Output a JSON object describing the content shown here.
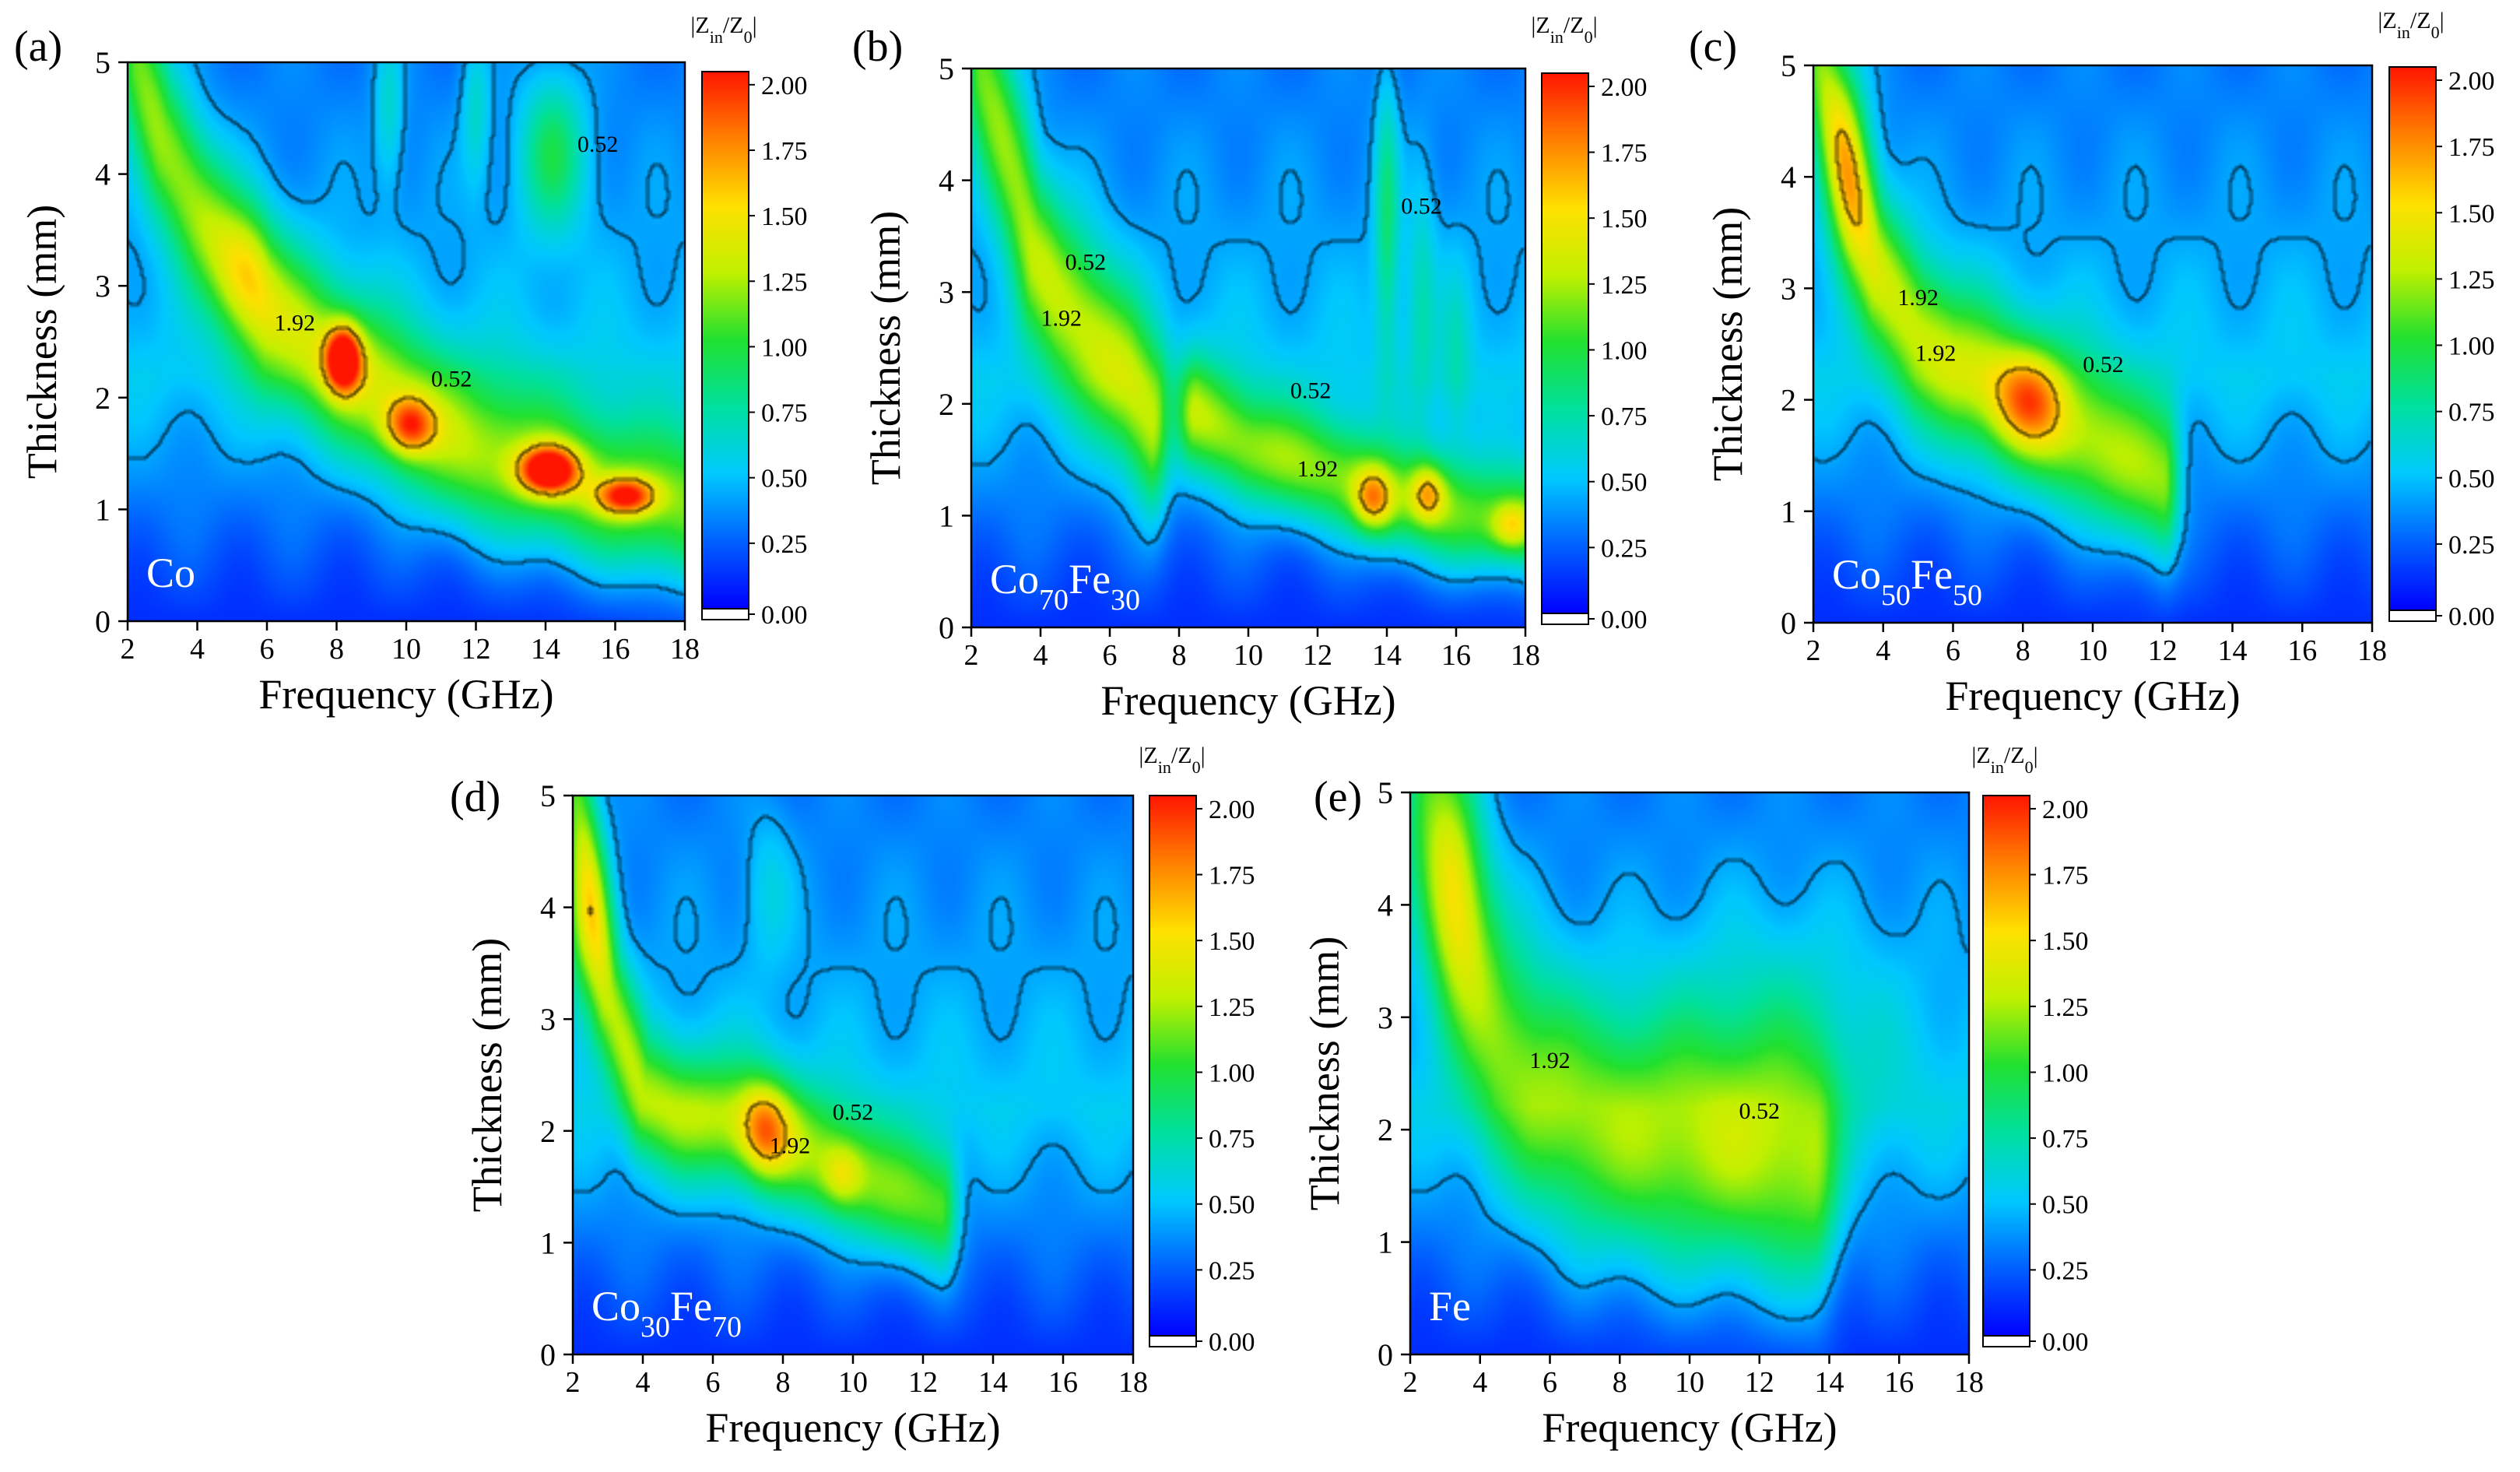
{
  "colors": {
    "contour": "#000000",
    "sample_label": "#ffffff"
  },
  "colorbar": {
    "title_prefix": "|Z",
    "title_sub1": "in",
    "title_mid": "/Z",
    "title_sub2": "0",
    "title_suffix": "|",
    "range": [
      0,
      2.05
    ],
    "ticks": [
      "2.00",
      "1.75",
      "1.50",
      "1.25",
      "1.00",
      "0.75",
      "0.50",
      "0.25",
      "0.00"
    ],
    "colormap": [
      "#0000ff",
      "#0060ff",
      "#00c8ff",
      "#00e0a0",
      "#20e030",
      "#c0f000",
      "#ffe000",
      "#ff8000",
      "#ff1500"
    ]
  },
  "axes": {
    "xlabel": "Frequency (GHz)",
    "ylabel": "Thickness (mm)",
    "xlim": [
      2,
      18
    ],
    "ylim": [
      0,
      5
    ],
    "xticks": [
      "2",
      "4",
      "6",
      "8",
      "10",
      "12",
      "14",
      "16",
      "18"
    ],
    "yticks": [
      "0",
      "1",
      "2",
      "3",
      "4",
      "5"
    ]
  },
  "chart_data": [
    {
      "type": "heatmap",
      "panel": "(a)",
      "sample": "Co",
      "sample_parts": [
        {
          "t": "Co",
          "sub": false
        }
      ],
      "contour_levels": [
        "0.52",
        "1.92"
      ],
      "contour_labels": [
        {
          "text": "0.52",
          "x": 15.5,
          "y": 4.2
        },
        {
          "text": "0.52",
          "x": 11.3,
          "y": 2.1
        },
        {
          "text": "1.92",
          "x": 6.8,
          "y": 2.6
        }
      ],
      "features": [
        {
          "kind": "ridge",
          "pts": [
            [
              2.3,
              5
            ],
            [
              3,
              4.3
            ],
            [
              4,
              3.7
            ],
            [
              5,
              3.2
            ],
            [
              6,
              2.75
            ],
            [
              7,
              2.55
            ],
            [
              8,
              2.3
            ],
            [
              9,
              2.1
            ],
            [
              10,
              1.85
            ],
            [
              11,
              1.65
            ],
            [
              12,
              1.5
            ],
            [
              13,
              1.42
            ],
            [
              14,
              1.32
            ],
            [
              15,
              1.2
            ],
            [
              16,
              1.12
            ],
            [
              17,
              1.05
            ],
            [
              18,
              1.0
            ]
          ],
          "amp": 0.85,
          "wy": 0.5,
          "wx": 0.4,
          "dx": 0.18,
          "dy": 0.04
        },
        {
          "kind": "spot",
          "x": 14.2,
          "y": 4.2,
          "amp": 0.55,
          "wx": 0.7,
          "wy": 0.5
        },
        {
          "kind": "spot",
          "x": 8.2,
          "y": 2.35,
          "amp": 1.3,
          "wx": 0.35,
          "wy": 0.2
        },
        {
          "kind": "spot",
          "x": 10.1,
          "y": 1.75,
          "amp": 0.8,
          "wx": 0.5,
          "wy": 0.18
        },
        {
          "kind": "spot",
          "x": 14.1,
          "y": 1.35,
          "amp": 1.3,
          "wx": 0.6,
          "wy": 0.15
        },
        {
          "kind": "spot",
          "x": 16.3,
          "y": 1.12,
          "amp": 1.0,
          "wx": 0.6,
          "wy": 0.12
        },
        {
          "kind": "spot",
          "x": 5.5,
          "y": 3.2,
          "amp": 0.35,
          "wx": 0.6,
          "wy": 0.4
        },
        {
          "kind": "spot",
          "x": 9.5,
          "y": 4.6,
          "amp": 0.3,
          "wx": 0.3,
          "wy": 0.5
        },
        {
          "kind": "spot",
          "x": 12.0,
          "y": 4.6,
          "amp": 0.3,
          "wx": 0.3,
          "wy": 0.5
        }
      ]
    },
    {
      "type": "heatmap",
      "panel": "(b)",
      "sample": "Co70Fe30",
      "sample_parts": [
        {
          "t": "Co",
          "sub": false
        },
        {
          "t": "70",
          "sub": true
        },
        {
          "t": "Fe",
          "sub": false
        },
        {
          "t": "30",
          "sub": true
        }
      ],
      "contour_levels": [
        "0.52",
        "1.92"
      ],
      "contour_labels": [
        {
          "text": "0.52",
          "x": 5.3,
          "y": 3.2
        },
        {
          "text": "1.92",
          "x": 4.6,
          "y": 2.7
        },
        {
          "text": "0.52",
          "x": 15.0,
          "y": 3.7
        },
        {
          "text": "0.52",
          "x": 11.8,
          "y": 2.05
        },
        {
          "text": "1.92",
          "x": 12.0,
          "y": 1.35
        }
      ],
      "features": [
        {
          "kind": "ridge",
          "pts": [
            [
              2.3,
              5
            ],
            [
              2.8,
              4.5
            ],
            [
              3.3,
              4
            ],
            [
              3.8,
              3.4
            ],
            [
              4.5,
              3.0
            ],
            [
              5.5,
              2.6
            ],
            [
              6.5,
              2.2
            ],
            [
              7.2,
              1.8
            ]
          ],
          "amp": 0.85,
          "wy": 0.55,
          "wx": 0.35,
          "dx": 0.12,
          "dy": 0.0
        },
        {
          "kind": "ridge",
          "pts": [
            [
              8.5,
              1.9
            ],
            [
              10,
              1.6
            ],
            [
              11.5,
              1.45
            ],
            [
              13,
              1.3
            ],
            [
              14,
              1.15
            ],
            [
              15,
              1.1
            ],
            [
              16,
              1.0
            ],
            [
              17,
              0.95
            ],
            [
              18,
              0.95
            ]
          ],
          "amp": 0.8,
          "wy": 0.35,
          "wx": 0.4,
          "dx": 0.0,
          "dy": 0.0
        },
        {
          "kind": "spot",
          "x": 13.6,
          "y": 1.15,
          "amp": 0.7,
          "wx": 0.4,
          "wy": 0.2
        },
        {
          "kind": "spot",
          "x": 15.2,
          "y": 1.2,
          "amp": 0.6,
          "wx": 0.35,
          "wy": 0.18
        },
        {
          "kind": "spot",
          "x": 17.6,
          "y": 0.9,
          "amp": 0.5,
          "wx": 0.4,
          "wy": 0.15
        },
        {
          "kind": "spot",
          "x": 14.0,
          "y": 3.7,
          "amp": 0.45,
          "wx": 0.25,
          "wy": 0.9
        },
        {
          "kind": "spot",
          "x": 15.0,
          "y": 3.0,
          "amp": 0.25,
          "wx": 0.3,
          "wy": 0.8
        },
        {
          "kind": "spot",
          "x": 16.0,
          "y": 2.4,
          "amp": 0.2,
          "wx": 0.3,
          "wy": 0.6
        }
      ]
    },
    {
      "type": "heatmap",
      "panel": "(c)",
      "sample": "Co50Fe50",
      "sample_parts": [
        {
          "t": "Co",
          "sub": false
        },
        {
          "t": "50",
          "sub": true
        },
        {
          "t": "Fe",
          "sub": false
        },
        {
          "t": "50",
          "sub": true
        }
      ],
      "contour_levels": [
        "0.52",
        "1.92"
      ],
      "contour_labels": [
        {
          "text": "1.92",
          "x": 5.0,
          "y": 2.85
        },
        {
          "text": "1.92",
          "x": 5.5,
          "y": 2.35
        },
        {
          "text": "0.52",
          "x": 10.3,
          "y": 2.25
        }
      ],
      "features": [
        {
          "kind": "ridge",
          "pts": [
            [
              2.2,
              5
            ],
            [
              2.7,
              4.4
            ],
            [
              3.2,
              3.8
            ],
            [
              3.8,
              3.2
            ],
            [
              5,
              2.6
            ],
            [
              6,
              2.3
            ],
            [
              7,
              2.15
            ],
            [
              8,
              1.95
            ],
            [
              9,
              1.75
            ],
            [
              10,
              1.6
            ],
            [
              11,
              1.4
            ],
            [
              12,
              1.25
            ]
          ],
          "amp": 0.85,
          "wy": 0.5,
          "wx": 0.35,
          "dx": 0.15,
          "dy": 0.0
        },
        {
          "kind": "spot",
          "x": 8.2,
          "y": 2.0,
          "amp": 0.6,
          "wx": 0.7,
          "wy": 0.3
        },
        {
          "kind": "spot",
          "x": 3.0,
          "y": 4.0,
          "amp": 0.5,
          "wx": 0.5,
          "wy": 0.7
        }
      ]
    },
    {
      "type": "heatmap",
      "panel": "(d)",
      "sample": "Co30Fe70",
      "sample_parts": [
        {
          "t": "Co",
          "sub": false
        },
        {
          "t": "30",
          "sub": true
        },
        {
          "t": "Fe",
          "sub": false
        },
        {
          "t": "70",
          "sub": true
        }
      ],
      "contour_levels": [
        "0.52",
        "1.92"
      ],
      "contour_labels": [
        {
          "text": "0.52",
          "x": 10.0,
          "y": 2.1
        },
        {
          "text": "1.92",
          "x": 8.2,
          "y": 1.8
        }
      ],
      "features": [
        {
          "kind": "ridge",
          "pts": [
            [
              2.1,
              5
            ],
            [
              2.5,
              4.2
            ],
            [
              3,
              3.2
            ],
            [
              4,
              2.3
            ],
            [
              5,
              2.15
            ],
            [
              6,
              2.1
            ],
            [
              7,
              2.05
            ],
            [
              8,
              1.9
            ],
            [
              9,
              1.75
            ],
            [
              10,
              1.6
            ],
            [
              11,
              1.45
            ],
            [
              12,
              1.35
            ],
            [
              12.5,
              1.3
            ]
          ],
          "amp": 0.75,
          "wy": 0.4,
          "wx": 0.35,
          "dx": 0.0,
          "dy": 0.0
        },
        {
          "kind": "spot",
          "x": 2.3,
          "y": 3.8,
          "amp": 0.5,
          "wx": 0.5,
          "wy": 0.6
        },
        {
          "kind": "spot",
          "x": 7.5,
          "y": 2.0,
          "amp": 0.65,
          "wx": 0.5,
          "wy": 0.3
        },
        {
          "kind": "spot",
          "x": 9.7,
          "y": 1.6,
          "amp": 0.35,
          "wx": 0.4,
          "wy": 0.2
        },
        {
          "kind": "spot",
          "x": 7.6,
          "y": 4.2,
          "amp": 0.2,
          "wx": 0.5,
          "wy": 0.5
        }
      ]
    },
    {
      "type": "heatmap",
      "panel": "(e)",
      "sample": "Fe",
      "sample_parts": [
        {
          "t": "Fe",
          "sub": false
        }
      ],
      "contour_levels": [
        "0.52",
        "1.92"
      ],
      "contour_labels": [
        {
          "text": "1.92",
          "x": 6.0,
          "y": 2.55
        },
        {
          "text": "0.52",
          "x": 12.0,
          "y": 2.1
        }
      ],
      "features": [
        {
          "kind": "ridge",
          "pts": [
            [
              2.5,
              5
            ],
            [
              3,
              4.4
            ],
            [
              3.5,
              3.8
            ],
            [
              4,
              3.3
            ],
            [
              4.6,
              2.8
            ],
            [
              5.5,
              2.4
            ],
            [
              7,
              2.0
            ],
            [
              9,
              1.8
            ],
            [
              11,
              1.7
            ],
            [
              12.5,
              1.6
            ],
            [
              13.5,
              1.5
            ]
          ],
          "amp": 0.7,
          "wy": 0.8,
          "wx": 0.55,
          "dx": 0.0,
          "dy": 0.0
        },
        {
          "kind": "spot",
          "x": 3.3,
          "y": 4.1,
          "amp": 0.45,
          "wx": 0.6,
          "wy": 0.8
        },
        {
          "kind": "spot",
          "x": 12.5,
          "y": 2.7,
          "amp": 0.25,
          "wx": 2.5,
          "wy": 0.9
        }
      ]
    }
  ]
}
